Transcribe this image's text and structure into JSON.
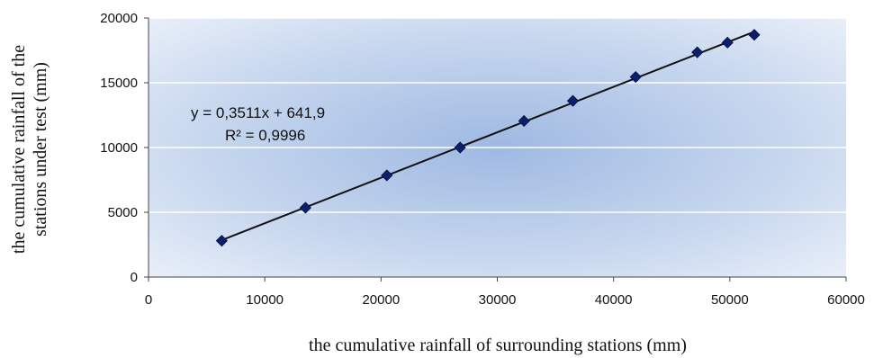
{
  "chart_data": {
    "type": "scatter",
    "xlabel": "the cumulative rainfall of surrounding stations (mm)",
    "ylabel_line1": "the cumulative rainfall of the",
    "ylabel_line2": "stations under test (mm)",
    "xlim": [
      0,
      60000
    ],
    "ylim": [
      0,
      20000
    ],
    "xticks": [
      "0",
      "10000",
      "20000",
      "30000",
      "40000",
      "50000",
      "60000"
    ],
    "yticks": [
      "0",
      "5000",
      "10000",
      "15000",
      "20000"
    ],
    "grid": "horizontal",
    "points": [
      {
        "x": 6300,
        "y": 2800
      },
      {
        "x": 13500,
        "y": 5350
      },
      {
        "x": 20500,
        "y": 7850
      },
      {
        "x": 26800,
        "y": 10000
      },
      {
        "x": 32300,
        "y": 12050
      },
      {
        "x": 36500,
        "y": 13600
      },
      {
        "x": 41900,
        "y": 15450
      },
      {
        "x": 47200,
        "y": 17350
      },
      {
        "x": 49800,
        "y": 18100
      },
      {
        "x": 52100,
        "y": 18700
      }
    ],
    "trendline": {
      "slope": 0.3511,
      "intercept": 641.9
    },
    "equation_label": "y = 0,3511x + 641,9",
    "r2_label": "R² = 0,9996",
    "marker_color": "#0b1f6e",
    "line_color": "#111111"
  }
}
